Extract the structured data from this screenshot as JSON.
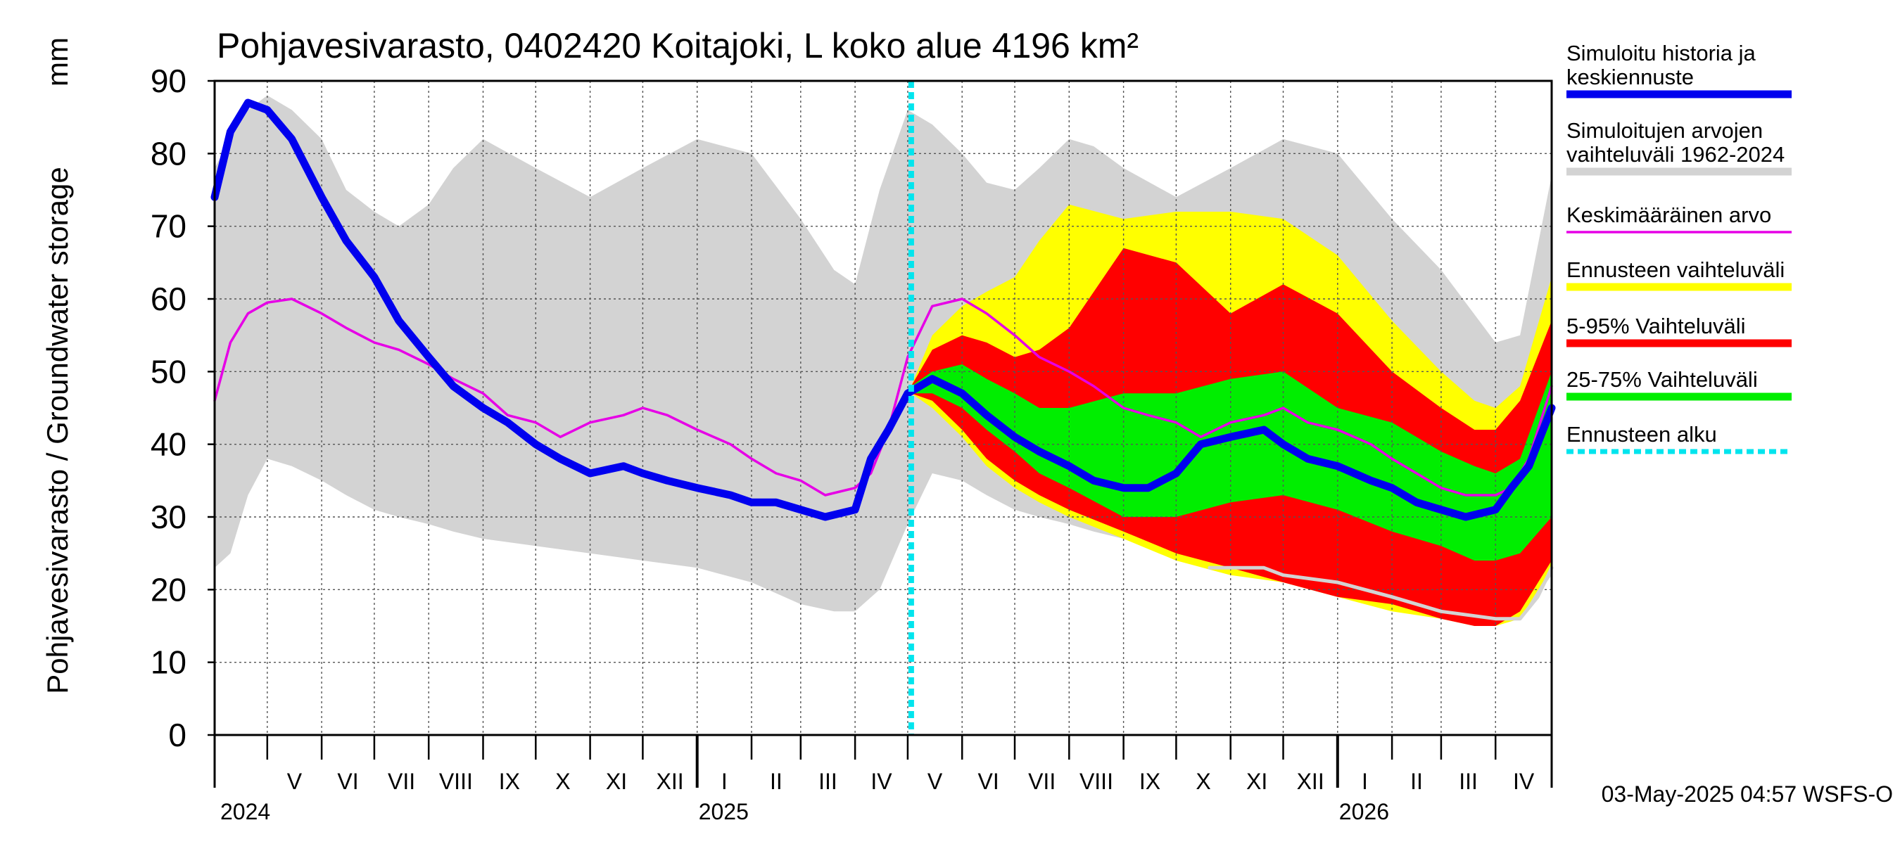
{
  "chart_data": {
    "type": "area",
    "title": "Pohjavesivarasto, 0402420 Koitajoki, L koko alue 4196 km²",
    "ylabel": "Pohjavesivarasto / Groundwater storage",
    "yunit": "mm",
    "ylim": [
      0,
      90
    ],
    "yticks": [
      0,
      10,
      20,
      30,
      40,
      50,
      60,
      70,
      80,
      90
    ],
    "xlim": [
      "2024-04-01",
      "2026-05-03"
    ],
    "grid": true,
    "legend_position": "right",
    "forecast_start": "2025-05-03",
    "footer": "03-May-2025 04:57 WSFS-O",
    "month_labels": [
      {
        "label": "V",
        "date": "2024-05-01"
      },
      {
        "label": "VI",
        "date": "2024-06-01"
      },
      {
        "label": "VII",
        "date": "2024-07-01"
      },
      {
        "label": "VIII",
        "date": "2024-08-01"
      },
      {
        "label": "IX",
        "date": "2024-09-01"
      },
      {
        "label": "X",
        "date": "2024-10-01"
      },
      {
        "label": "XI",
        "date": "2024-11-01"
      },
      {
        "label": "XII",
        "date": "2024-12-01"
      },
      {
        "label": "I",
        "date": "2025-01-01"
      },
      {
        "label": "II",
        "date": "2025-02-01"
      },
      {
        "label": "III",
        "date": "2025-03-01"
      },
      {
        "label": "IV",
        "date": "2025-04-01"
      },
      {
        "label": "V",
        "date": "2025-05-01"
      },
      {
        "label": "VI",
        "date": "2025-06-01"
      },
      {
        "label": "VII",
        "date": "2025-07-01"
      },
      {
        "label": "VIII",
        "date": "2025-08-01"
      },
      {
        "label": "IX",
        "date": "2025-09-01"
      },
      {
        "label": "X",
        "date": "2025-10-01"
      },
      {
        "label": "XI",
        "date": "2025-11-01"
      },
      {
        "label": "XII",
        "date": "2025-12-01"
      },
      {
        "label": "I",
        "date": "2026-01-01"
      },
      {
        "label": "II",
        "date": "2026-02-01"
      },
      {
        "label": "III",
        "date": "2026-03-01"
      },
      {
        "label": "IV",
        "date": "2026-04-01"
      }
    ],
    "year_labels": [
      {
        "label": "2024",
        "date": "2024-04-01"
      },
      {
        "label": "2025",
        "date": "2025-01-01"
      },
      {
        "label": "2026",
        "date": "2026-01-01"
      }
    ],
    "legend": [
      {
        "label": "Simuloitu historia ja keskiennuste",
        "color": "#0000ee",
        "style": "thick"
      },
      {
        "label": "Simuloitujen arvojen vaihteluväli 1962-2024",
        "color": "#d3d3d3",
        "style": "thick"
      },
      {
        "label": "Keskimääräinen arvo",
        "color": "#e600e6",
        "style": "thin"
      },
      {
        "label": "Ennusteen vaihteluväli",
        "color": "#ffff00",
        "style": "thick"
      },
      {
        "label": "5-95% Vaihteluväli",
        "color": "#ff0000",
        "style": "thick"
      },
      {
        "label": "25-75% Vaihteluväli",
        "color": "#00ee00",
        "style": "thick"
      },
      {
        "label": "Ennusteen alku",
        "color": "#00e5ee",
        "style": "dashed"
      }
    ],
    "series": [
      {
        "name": "Simuloitujen arvojen vaihteluväli 1962-2024",
        "type": "band",
        "color": "#d3d3d3",
        "x": [
          "2024-04-01",
          "2024-04-10",
          "2024-04-20",
          "2024-05-01",
          "2024-05-15",
          "2024-06-01",
          "2024-06-15",
          "2024-07-01",
          "2024-07-15",
          "2024-08-01",
          "2024-08-15",
          "2024-09-01",
          "2024-10-01",
          "2024-11-01",
          "2024-12-01",
          "2025-01-01",
          "2025-02-01",
          "2025-03-01",
          "2025-03-20",
          "2025-04-01",
          "2025-04-15",
          "2025-05-01",
          "2025-05-15",
          "2025-06-01",
          "2025-06-15",
          "2025-07-01",
          "2025-07-15",
          "2025-08-01",
          "2025-08-15",
          "2025-09-01",
          "2025-10-01",
          "2025-11-01",
          "2025-12-01",
          "2026-01-01",
          "2026-02-01",
          "2026-03-01",
          "2026-04-01",
          "2026-04-15",
          "2026-05-03"
        ],
        "lower": [
          23,
          25,
          33,
          38,
          37,
          35,
          33,
          31,
          30,
          29,
          28,
          27,
          26,
          25,
          24,
          23,
          21,
          18,
          17,
          17,
          20,
          29,
          36,
          35,
          33,
          31,
          30,
          29,
          28,
          27,
          26,
          25,
          24,
          23,
          21,
          18,
          16,
          16,
          22
        ],
        "upper": [
          78,
          82,
          86,
          88,
          86,
          82,
          75,
          72,
          70,
          73,
          78,
          82,
          78,
          74,
          78,
          82,
          80,
          71,
          64,
          62,
          75,
          86,
          84,
          80,
          76,
          75,
          78,
          82,
          81,
          78,
          74,
          78,
          82,
          80,
          71,
          64,
          54,
          55,
          77
        ]
      },
      {
        "name": "Ennusteen vaihteluväli",
        "type": "band",
        "color": "#ffff00",
        "x": [
          "2025-05-03",
          "2025-05-15",
          "2025-06-01",
          "2025-06-15",
          "2025-07-01",
          "2025-07-15",
          "2025-08-01",
          "2025-09-01",
          "2025-10-01",
          "2025-11-01",
          "2025-12-01",
          "2026-01-01",
          "2026-02-01",
          "2026-03-01",
          "2026-03-20",
          "2026-04-01",
          "2026-04-15",
          "2026-05-03"
        ],
        "lower": [
          47,
          45,
          41,
          37,
          34,
          32,
          30,
          27,
          24,
          22,
          21,
          19,
          17,
          16,
          15,
          15,
          16,
          23
        ],
        "upper": [
          48,
          55,
          59,
          61,
          63,
          68,
          73,
          71,
          72,
          72,
          71,
          66,
          57,
          50,
          46,
          45,
          48,
          63
        ]
      },
      {
        "name": "5-95% Vaihteluväli",
        "type": "band",
        "color": "#ff0000",
        "x": [
          "2025-05-03",
          "2025-05-15",
          "2025-06-01",
          "2025-06-15",
          "2025-07-01",
          "2025-07-15",
          "2025-08-01",
          "2025-09-01",
          "2025-10-01",
          "2025-11-01",
          "2025-12-01",
          "2026-01-01",
          "2026-02-01",
          "2026-03-01",
          "2026-03-20",
          "2026-04-01",
          "2026-04-15",
          "2026-05-03"
        ],
        "lower": [
          47,
          46,
          42,
          38,
          35,
          33,
          31,
          28,
          25,
          23,
          21,
          19,
          18,
          16,
          15,
          15,
          17,
          24
        ],
        "upper": [
          48,
          53,
          55,
          54,
          52,
          53,
          56,
          67,
          65,
          58,
          62,
          58,
          50,
          45,
          42,
          42,
          46,
          57
        ]
      },
      {
        "name": "25-75% Vaihteluväli",
        "type": "band",
        "color": "#00ee00",
        "x": [
          "2025-05-03",
          "2025-05-15",
          "2025-06-01",
          "2025-06-15",
          "2025-07-01",
          "2025-07-15",
          "2025-08-01",
          "2025-09-01",
          "2025-10-01",
          "2025-11-01",
          "2025-12-01",
          "2026-01-01",
          "2026-02-01",
          "2026-03-01",
          "2026-03-20",
          "2026-04-01",
          "2026-04-15",
          "2026-05-03"
        ],
        "lower": [
          47,
          47,
          45,
          42,
          39,
          36,
          34,
          30,
          30,
          32,
          33,
          31,
          28,
          26,
          24,
          24,
          25,
          30
        ],
        "upper": [
          48,
          50,
          51,
          49,
          47,
          45,
          45,
          47,
          47,
          49,
          50,
          45,
          43,
          39,
          37,
          36,
          38,
          50
        ]
      },
      {
        "name": "Keskimääräinen arvo",
        "type": "line",
        "color": "#e600e6",
        "x": [
          "2024-04-01",
          "2024-04-10",
          "2024-04-20",
          "2024-05-01",
          "2024-05-15",
          "2024-06-01",
          "2024-06-15",
          "2024-07-01",
          "2024-07-15",
          "2024-08-01",
          "2024-08-15",
          "2024-09-01",
          "2024-09-15",
          "2024-10-01",
          "2024-10-15",
          "2024-11-01",
          "2024-11-20",
          "2024-12-01",
          "2024-12-15",
          "2025-01-01",
          "2025-01-20",
          "2025-02-01",
          "2025-02-15",
          "2025-03-01",
          "2025-03-15",
          "2025-04-01",
          "2025-04-10",
          "2025-04-20",
          "2025-05-01",
          "2025-05-15",
          "2025-06-01",
          "2025-06-15",
          "2025-07-01",
          "2025-07-15",
          "2025-08-01",
          "2025-08-15",
          "2025-09-01",
          "2025-09-15",
          "2025-10-01",
          "2025-10-15",
          "2025-11-01",
          "2025-11-20",
          "2025-12-01",
          "2025-12-15",
          "2026-01-01",
          "2026-01-20",
          "2026-02-01",
          "2026-02-15",
          "2026-03-01",
          "2026-03-15",
          "2026-04-01",
          "2026-04-10",
          "2026-04-20",
          "2026-05-03"
        ],
        "y": [
          46,
          54,
          58,
          59.5,
          60,
          58,
          56,
          54,
          53,
          51,
          49,
          47,
          44,
          43,
          41,
          43,
          44,
          45,
          44,
          42,
          40,
          38,
          36,
          35,
          33,
          34,
          36,
          42,
          52,
          59,
          60,
          58,
          55,
          52,
          50,
          48,
          45,
          44,
          43,
          41,
          43,
          44,
          45,
          43,
          42,
          40,
          38,
          36,
          34,
          33,
          33,
          34,
          38,
          48
        ]
      },
      {
        "name": "Simuloitu historia ja keskiennuste",
        "type": "line",
        "color": "#0000ee",
        "x": [
          "2024-04-01",
          "2024-04-10",
          "2024-04-20",
          "2024-05-01",
          "2024-05-15",
          "2024-06-01",
          "2024-06-15",
          "2024-07-01",
          "2024-07-15",
          "2024-08-01",
          "2024-08-15",
          "2024-09-01",
          "2024-09-15",
          "2024-10-01",
          "2024-10-15",
          "2024-11-01",
          "2024-11-20",
          "2024-12-01",
          "2024-12-15",
          "2025-01-01",
          "2025-01-20",
          "2025-02-01",
          "2025-02-15",
          "2025-03-01",
          "2025-03-15",
          "2025-04-01",
          "2025-04-10",
          "2025-04-20",
          "2025-05-01",
          "2025-05-15",
          "2025-06-01",
          "2025-06-15",
          "2025-07-01",
          "2025-07-15",
          "2025-08-01",
          "2025-08-15",
          "2025-09-01",
          "2025-09-15",
          "2025-10-01",
          "2025-10-15",
          "2025-11-01",
          "2025-11-20",
          "2025-12-01",
          "2025-12-15",
          "2026-01-01",
          "2026-01-20",
          "2026-02-01",
          "2026-02-15",
          "2026-03-01",
          "2026-03-15",
          "2026-04-01",
          "2026-04-10",
          "2026-04-20",
          "2026-05-03"
        ],
        "y": [
          74,
          83,
          87,
          86,
          82,
          74,
          68,
          63,
          57,
          52,
          48,
          45,
          43,
          40,
          38,
          36,
          37,
          36,
          35,
          34,
          33,
          32,
          32,
          31,
          30,
          31,
          38,
          42,
          47,
          49,
          47,
          44,
          41,
          39,
          37,
          35,
          34,
          34,
          36,
          40,
          41,
          42,
          40,
          38,
          37,
          35,
          34,
          32,
          31,
          30,
          31,
          34,
          37,
          45
        ]
      },
      {
        "name": "min",
        "type": "line",
        "color": "#d3d3d3",
        "x": [
          "2025-10-20",
          "2025-11-01",
          "2025-11-20",
          "2025-12-01",
          "2026-01-01",
          "2026-02-01",
          "2026-03-01",
          "2026-04-01",
          "2026-04-15",
          "2026-04-25",
          "2026-05-03"
        ],
        "y": [
          23,
          23,
          23,
          22,
          21,
          19,
          17,
          16,
          16,
          19,
          23
        ]
      }
    ]
  }
}
